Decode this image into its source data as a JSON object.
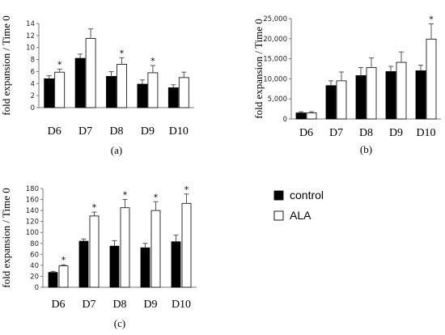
{
  "legend": {
    "items": [
      {
        "label": "control",
        "fill": "#000000"
      },
      {
        "label": "ALA",
        "fill": "#ffffff"
      }
    ]
  },
  "chart_data": [
    {
      "id": "a",
      "type": "bar",
      "panel_label": "(a)",
      "ylabel": "fold expansion / Time 0",
      "categories": [
        "D6",
        "D7",
        "D8",
        "D9",
        "D10"
      ],
      "ylim": [
        0,
        14
      ],
      "yticks": [
        0,
        2,
        4,
        6,
        8,
        10,
        12,
        14
      ],
      "ytick_labels": [
        "0",
        "2",
        "4",
        "6",
        "8",
        "10",
        "12",
        "14"
      ],
      "series": [
        {
          "name": "control",
          "values": [
            4.8,
            8.2,
            5.2,
            3.9,
            3.3
          ],
          "errors": [
            0.5,
            0.7,
            0.8,
            0.7,
            0.5
          ]
        },
        {
          "name": "ALA",
          "values": [
            5.9,
            11.5,
            7.2,
            5.8,
            5.0
          ],
          "errors": [
            0.5,
            1.6,
            1.1,
            1.2,
            0.9
          ]
        }
      ],
      "significant": [
        true,
        false,
        true,
        true,
        false
      ]
    },
    {
      "id": "b",
      "type": "bar",
      "panel_label": "(b)",
      "ylabel": "fold expansion / Time 0",
      "categories": [
        "D6",
        "D7",
        "D8",
        "D9",
        "D10"
      ],
      "ylim": [
        0,
        25000
      ],
      "yticks": [
        0,
        5000,
        10000,
        15000,
        20000,
        25000
      ],
      "ytick_labels": [
        "0",
        "5,000",
        "10,000",
        "15,000",
        "20,000",
        "25,000"
      ],
      "series": [
        {
          "name": "control",
          "values": [
            1500,
            8300,
            10800,
            11800,
            12000
          ],
          "errors": [
            300,
            1200,
            2000,
            1300,
            1400
          ]
        },
        {
          "name": "ALA",
          "values": [
            1500,
            9500,
            12800,
            14100,
            19900
          ],
          "errors": [
            300,
            2200,
            2400,
            2600,
            3800
          ]
        }
      ],
      "significant": [
        false,
        false,
        false,
        false,
        true
      ]
    },
    {
      "id": "c",
      "type": "bar",
      "panel_label": "(c)",
      "ylabel": "fold expansion / Time 0",
      "categories": [
        "D6",
        "D7",
        "D8",
        "D9",
        "D10"
      ],
      "ylim": [
        0,
        180
      ],
      "yticks": [
        0,
        20,
        40,
        60,
        80,
        100,
        120,
        140,
        160,
        180
      ],
      "ytick_labels": [
        "0",
        "20",
        "40",
        "60",
        "80",
        "100",
        "120",
        "140",
        "160",
        "180"
      ],
      "series": [
        {
          "name": "control",
          "values": [
            27,
            84,
            75,
            72,
            83
          ],
          "errors": [
            2,
            4,
            10,
            8,
            12
          ]
        },
        {
          "name": "ALA",
          "values": [
            39,
            130,
            145,
            140,
            153
          ],
          "errors": [
            2,
            7,
            15,
            16,
            17
          ]
        }
      ],
      "significant": [
        true,
        true,
        true,
        true,
        true
      ]
    }
  ]
}
